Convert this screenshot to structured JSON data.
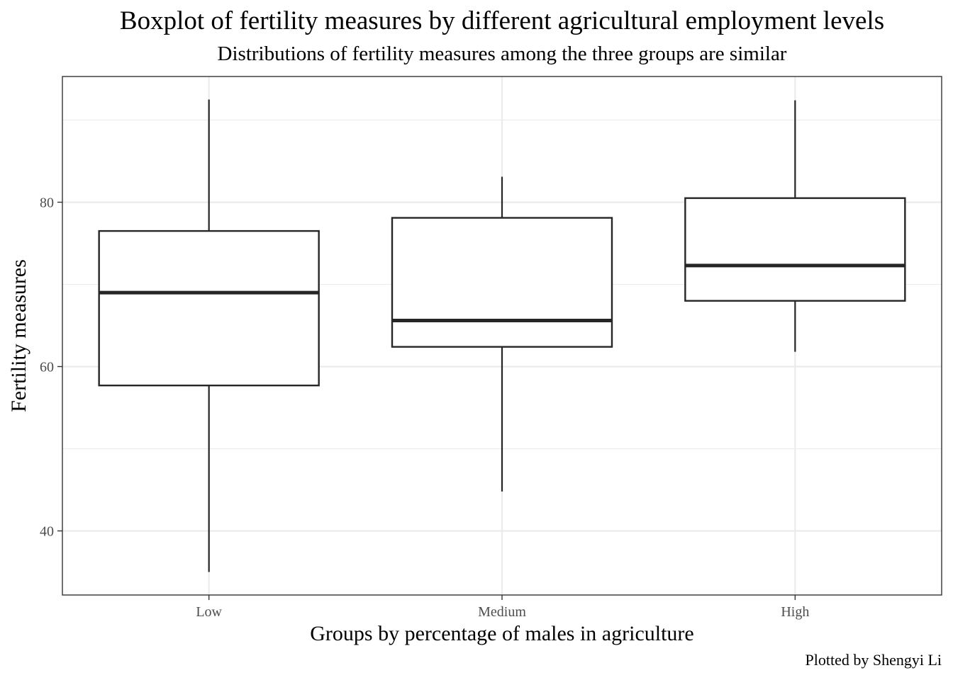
{
  "chart_data": {
    "type": "boxplot",
    "title": "Boxplot of fertility measures by different agricultural employment levels",
    "subtitle": "Distributions of fertility measures among the three groups are similar",
    "xlabel": "Groups by percentage of males in agriculture",
    "ylabel": "Fertility measures",
    "caption": "Plotted by Shengyi Li",
    "categories": [
      "Low",
      "Medium",
      "High"
    ],
    "boxes": [
      {
        "category": "Low",
        "min": 35.0,
        "q1": 57.7,
        "median": 69.0,
        "q3": 76.5,
        "max": 92.5
      },
      {
        "category": "Medium",
        "min": 44.8,
        "q1": 62.4,
        "median": 65.6,
        "q3": 78.1,
        "max": 83.1
      },
      {
        "category": "High",
        "min": 61.8,
        "q1": 68.0,
        "median": 72.3,
        "q3": 80.5,
        "max": 92.4
      }
    ],
    "ylim": [
      32.2,
      95.3
    ],
    "yticks": [
      40,
      60,
      80
    ],
    "grid": true,
    "box_color": "#262626",
    "grid_color": "#ebebeb",
    "panel_border_color": "#333333"
  }
}
